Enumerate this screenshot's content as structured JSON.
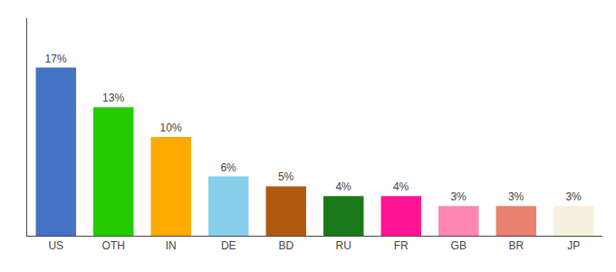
{
  "chart_data": {
    "type": "bar",
    "categories": [
      "US",
      "OTH",
      "IN",
      "DE",
      "BD",
      "RU",
      "FR",
      "GB",
      "BR",
      "JP"
    ],
    "values": [
      17,
      13,
      10,
      6,
      5,
      4,
      4,
      3,
      3,
      3
    ],
    "value_labels": [
      "17%",
      "13%",
      "10%",
      "6%",
      "5%",
      "4%",
      "4%",
      "3%",
      "3%",
      "3%"
    ],
    "colors": [
      "#4472c4",
      "#22cc00",
      "#ffaa00",
      "#87ceeb",
      "#b05a10",
      "#1a7a1a",
      "#ff1493",
      "#ff85b3",
      "#e88070",
      "#f5f0dc"
    ],
    "ylim": [
      0,
      22
    ],
    "yticks": [],
    "grid": false,
    "data_labels": true,
    "tick_labels": "x"
  }
}
